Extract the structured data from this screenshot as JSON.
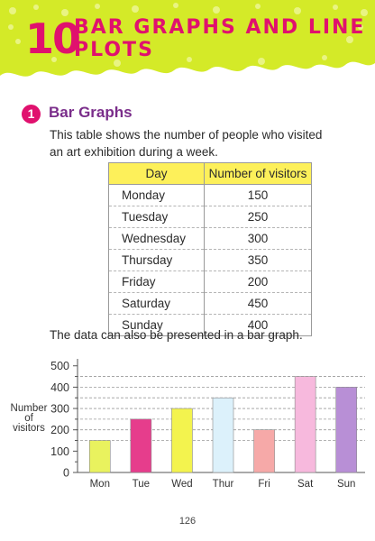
{
  "chapter": {
    "number": "10",
    "title": "BAR GRAPHS AND LINE PLOTS"
  },
  "section": {
    "number": "1",
    "title": "Bar Graphs"
  },
  "intro_text": "This table shows the number of people who visited an art exhibition during a week.",
  "table": {
    "headers": [
      "Day",
      "Number of visitors"
    ],
    "rows": [
      [
        "Monday",
        "150"
      ],
      [
        "Tuesday",
        "250"
      ],
      [
        "Wednesday",
        "300"
      ],
      [
        "Thursday",
        "350"
      ],
      [
        "Friday",
        "200"
      ],
      [
        "Saturday",
        "450"
      ],
      [
        "Sunday",
        "400"
      ]
    ]
  },
  "caption": "The data can also be presented in a bar graph.",
  "page_number": "126",
  "colors": {
    "accent": "#e0116e",
    "section_title": "#7a2d8a",
    "banner": "#d4ea28",
    "table_header": "#fdf05a"
  },
  "chart_data": {
    "type": "bar",
    "categories": [
      "Mon",
      "Tue",
      "Wed",
      "Thur",
      "Fri",
      "Sat",
      "Sun"
    ],
    "values": [
      150,
      250,
      300,
      350,
      200,
      450,
      400
    ],
    "bar_colors": [
      "#e9f25e",
      "#e63d8c",
      "#f3f34e",
      "#dcf1fb",
      "#f6a9a8",
      "#f7b9dd",
      "#b88fd6"
    ],
    "ylabel": "Number of visitors",
    "yticks": [
      0,
      100,
      200,
      300,
      400,
      500
    ],
    "ylim": [
      0,
      520
    ],
    "grid": "dashed reference lines at bar heights",
    "legend": "none"
  }
}
